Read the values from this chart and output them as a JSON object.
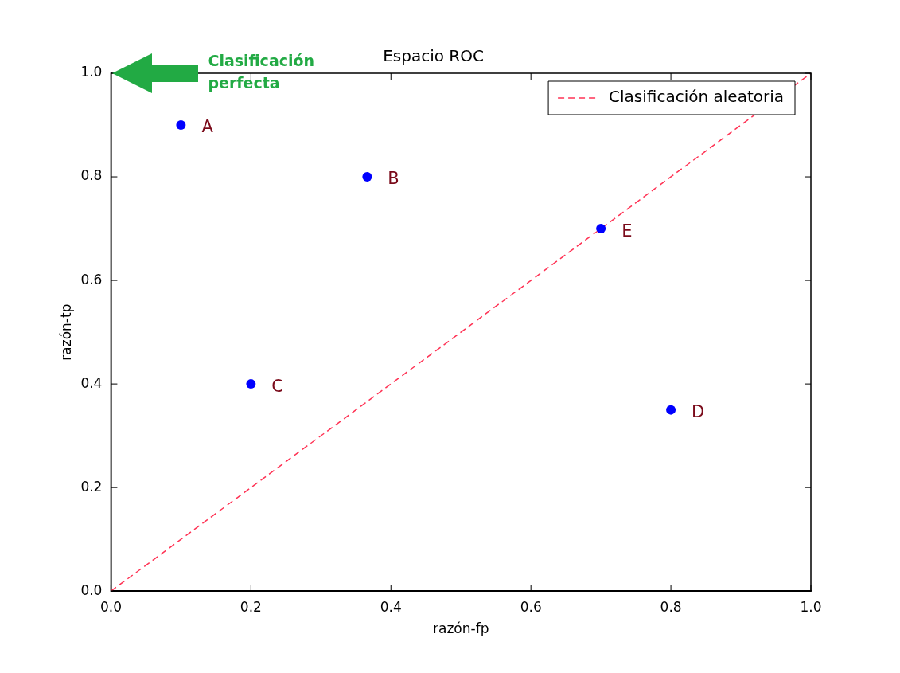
{
  "chart_data": {
    "type": "scatter",
    "title": "Espacio ROC",
    "xlabel": "razón-fp",
    "ylabel": "razón-tp",
    "xlim": [
      0,
      1
    ],
    "ylim": [
      0,
      1
    ],
    "xticks": [
      {
        "value": 0,
        "label": "0.0"
      },
      {
        "value": 0.2,
        "label": "0.2"
      },
      {
        "value": 0.4,
        "label": "0.4"
      },
      {
        "value": 0.6,
        "label": "0.6"
      },
      {
        "value": 0.8,
        "label": "0.8"
      },
      {
        "value": 1,
        "label": "1.0"
      }
    ],
    "yticks": [
      {
        "value": 0,
        "label": "0.0"
      },
      {
        "value": 0.2,
        "label": "0.2"
      },
      {
        "value": 0.4,
        "label": "0.4"
      },
      {
        "value": 0.6,
        "label": "0.6"
      },
      {
        "value": 0.8,
        "label": "0.8"
      },
      {
        "value": 1,
        "label": "1.0"
      }
    ],
    "marker": "circle",
    "legend": "top right",
    "series": [
      {
        "color": "#0000ff",
        "x": [
          0.1,
          0.366,
          0.2,
          0.8,
          0.7
        ],
        "values": [
          0.9,
          0.8,
          0.4,
          0.35,
          0.7
        ]
      },
      {
        "type": "line",
        "name": "Clasificación aleatoria",
        "color": "#ff3355",
        "line_style": "dashed",
        "marker": "none",
        "x": [
          0,
          1
        ],
        "values": [
          0,
          1
        ]
      }
    ],
    "annotations": [
      {
        "text": "A",
        "x": 0.1,
        "y": 0.9
      },
      {
        "text": "B",
        "x": 0.366,
        "y": 0.8
      },
      {
        "text": "C",
        "x": 0.2,
        "y": 0.4
      },
      {
        "text": "D",
        "x": 0.8,
        "y": 0.35
      },
      {
        "text": "E",
        "x": 0.7,
        "y": 0.7
      },
      "Clasificación perfecta"
    ]
  }
}
